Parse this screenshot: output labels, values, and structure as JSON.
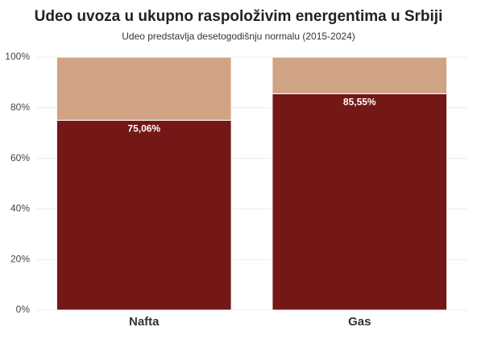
{
  "chart_data": {
    "type": "stacked_bar",
    "title": "Udeo uvoza u ukupno raspoloživim energentima u Srbiji",
    "subtitle": "Udeo predstavlja desetogodišnju normalu (2015-2024)",
    "categories": [
      "Nafta",
      "Gas"
    ],
    "series": [
      {
        "color": "#731717",
        "values": [
          75.06,
          85.55
        ],
        "value_labels": [
          "75,06%",
          "85,55%"
        ]
      },
      {
        "color": "#cfa383",
        "values": [
          24.94,
          14.45
        ]
      }
    ],
    "ylim": [
      0,
      100
    ],
    "yticks": [
      {
        "value": 0,
        "label": "0%"
      },
      {
        "value": 20,
        "label": "20%"
      },
      {
        "value": 40,
        "label": "40%"
      },
      {
        "value": 60,
        "label": "60%"
      },
      {
        "value": 80,
        "label": "80%"
      },
      {
        "value": 100,
        "label": "100%"
      }
    ],
    "grid": true
  }
}
